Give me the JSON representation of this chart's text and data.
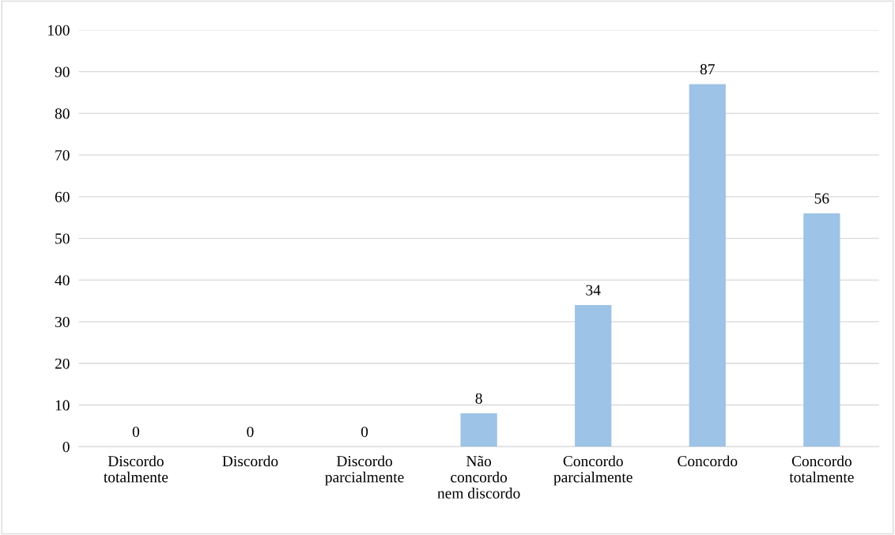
{
  "chart_data": {
    "type": "bar",
    "categories": [
      "Discordo\ntotalmente",
      "Discordo",
      "Discordo\nparcialmente",
      "Não\nconcordo\nnem discordo",
      "Concordo\nparcialmente",
      "Concordo",
      "Concordo\ntotalmente"
    ],
    "values": [
      0,
      0,
      0,
      8,
      34,
      87,
      56
    ],
    "color": "#9dc3e6",
    "ylim": [
      0,
      100
    ],
    "yticks": [
      0,
      10,
      20,
      30,
      40,
      50,
      60,
      70,
      80,
      90,
      100
    ],
    "grid": "y",
    "data_labels": true
  }
}
